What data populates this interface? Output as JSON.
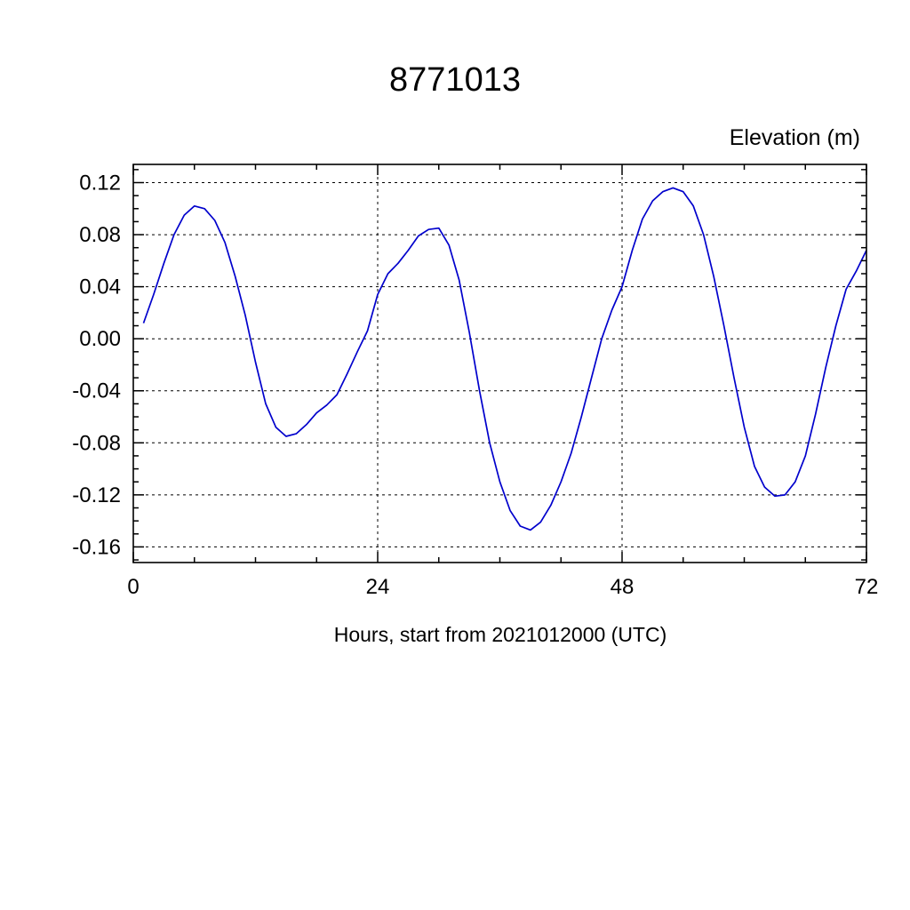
{
  "title": "8771013",
  "chart_data": {
    "type": "line",
    "title": "8771013",
    "xlabel": "Hours, start from 2021012000 (UTC)",
    "ylabel": "Elevation (m)",
    "line_color": "#0000cc",
    "grid": true,
    "legend": "none",
    "xlim": [
      0,
      72
    ],
    "ylim": [
      -0.172,
      0.134
    ],
    "x_major_ticks": [
      0,
      24,
      48,
      72
    ],
    "x_tick_labels": [
      "0",
      "24",
      "48",
      "72"
    ],
    "x_minor_step": 6,
    "x_gridlines": [
      24,
      48
    ],
    "y_major_ticks": [
      0.12,
      0.08,
      0.04,
      0.0,
      -0.04,
      -0.08,
      -0.12,
      -0.16
    ],
    "y_tick_labels": [
      "0.12",
      "0.08",
      "0.04",
      "0.00",
      "-0.04",
      "-0.08",
      "-0.12",
      "-0.16"
    ],
    "y_minor_step": 0.01,
    "x": [
      1,
      2,
      3,
      4,
      5,
      6,
      7,
      8,
      9,
      10,
      11,
      12,
      13,
      14,
      15,
      16,
      17,
      18,
      19,
      20,
      21,
      22,
      23,
      24,
      25,
      26,
      27,
      28,
      29,
      30,
      31,
      32,
      33,
      34,
      35,
      36,
      37,
      38,
      39,
      40,
      41,
      42,
      43,
      44,
      45,
      46,
      47,
      48,
      49,
      50,
      51,
      52,
      53,
      54,
      55,
      56,
      57,
      58,
      59,
      60,
      61,
      62,
      63,
      64,
      65,
      66,
      67,
      68,
      69,
      70,
      71,
      72
    ],
    "y": [
      0.012,
      0.034,
      0.058,
      0.08,
      0.095,
      0.102,
      0.1,
      0.091,
      0.074,
      0.048,
      0.018,
      -0.018,
      -0.05,
      -0.068,
      -0.075,
      -0.073,
      -0.066,
      -0.057,
      -0.051,
      -0.043,
      -0.027,
      -0.01,
      0.006,
      0.034,
      0.05,
      0.058,
      0.068,
      0.079,
      0.084,
      0.085,
      0.072,
      0.045,
      0.005,
      -0.04,
      -0.08,
      -0.11,
      -0.132,
      -0.144,
      -0.147,
      -0.141,
      -0.128,
      -0.11,
      -0.088,
      -0.06,
      -0.03,
      0.0,
      0.022,
      0.04,
      0.068,
      0.092,
      0.106,
      0.113,
      0.116,
      0.113,
      0.102,
      0.08,
      0.048,
      0.01,
      -0.03,
      -0.068,
      -0.098,
      -0.114,
      -0.121,
      -0.12,
      -0.11,
      -0.09,
      -0.058,
      -0.022,
      0.01,
      0.038,
      0.052,
      0.068
    ]
  }
}
